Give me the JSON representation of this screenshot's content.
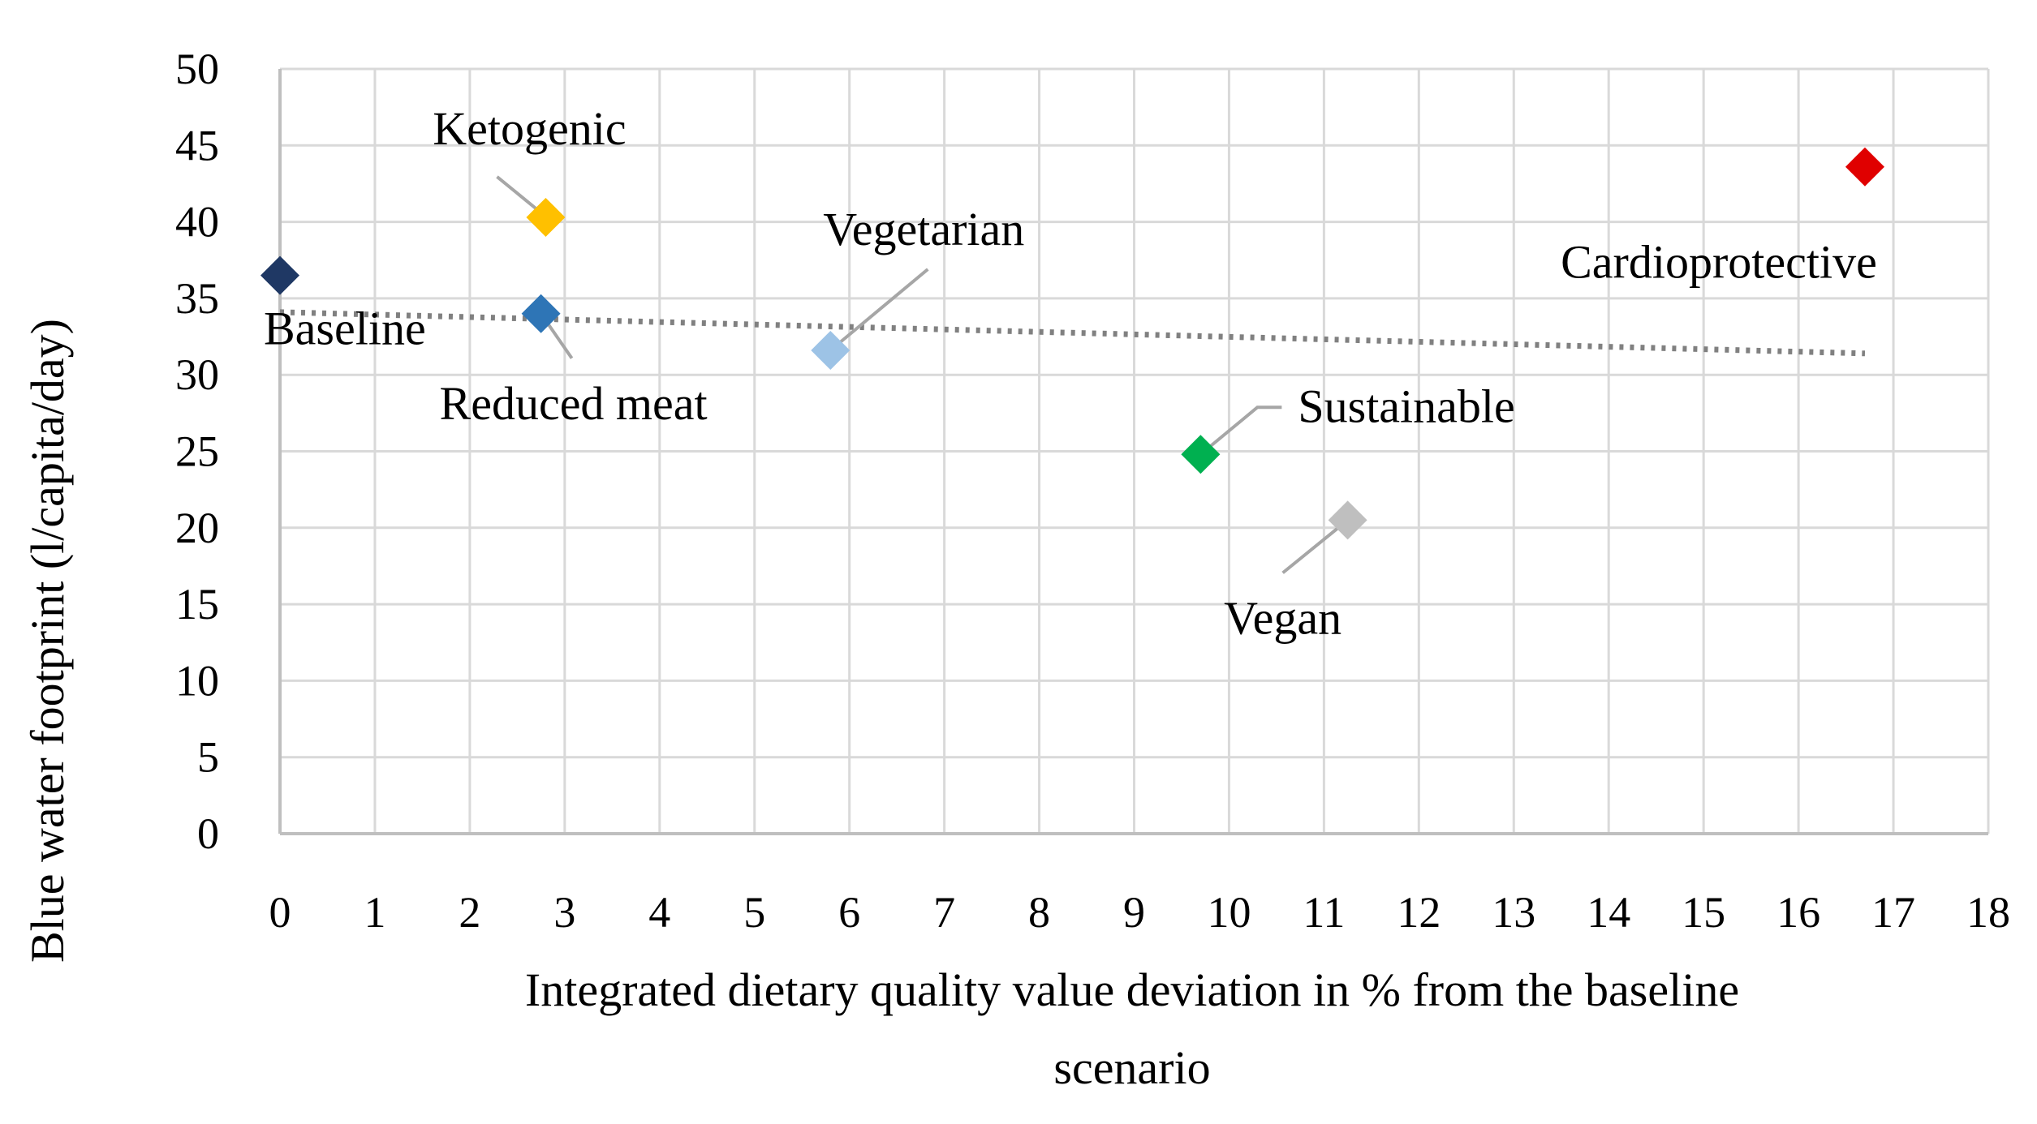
{
  "chart_data": {
    "type": "scatter",
    "title": "",
    "xlabel_lines": [
      "Integrated dietary quality value deviation in % from the baseline",
      "scenario"
    ],
    "ylabel": "Blue water footprint (l/capita/day)",
    "xlim": [
      0,
      18
    ],
    "ylim": [
      0,
      50
    ],
    "xticks": [
      0,
      1,
      2,
      3,
      4,
      5,
      6,
      7,
      8,
      9,
      10,
      11,
      12,
      13,
      14,
      15,
      16,
      17,
      18
    ],
    "yticks": [
      0,
      5,
      10,
      15,
      20,
      25,
      30,
      35,
      40,
      45,
      50
    ],
    "grid": true,
    "marker": "diamond",
    "points": [
      {
        "label": "Baseline",
        "x": 0,
        "y": 36.5,
        "color": "#1F3864"
      },
      {
        "label": "Ketogenic",
        "x": 2.8,
        "y": 40.3,
        "color": "#FFC000"
      },
      {
        "label": "Reduced meat",
        "x": 2.75,
        "y": 34,
        "color": "#2E75B6"
      },
      {
        "label": "Vegetarian",
        "x": 5.8,
        "y": 31.6,
        "color": "#9DC3E6"
      },
      {
        "label": "Sustainable",
        "x": 9.7,
        "y": 24.8,
        "color": "#00B050"
      },
      {
        "label": "Vegan",
        "x": 11.25,
        "y": 20.5,
        "color": "#BFBFBF"
      },
      {
        "label": "Cardioprotective",
        "x": 16.7,
        "y": 43.6,
        "color": "#E00000"
      }
    ],
    "trendline": {
      "type": "linear",
      "style": "dotted",
      "color": "#808080",
      "x0": 0,
      "y0": 34.1,
      "x1": 16.7,
      "y1": 31.4
    },
    "axis_color": "#BFBFBF",
    "grid_color": "#D9D9D9"
  }
}
